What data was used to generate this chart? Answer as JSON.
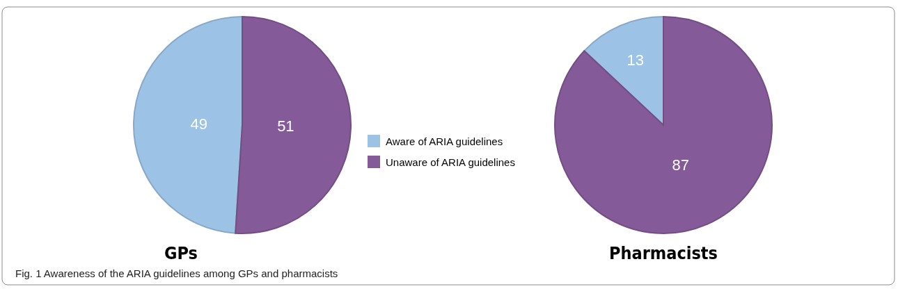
{
  "chart_data": [
    {
      "type": "pie",
      "title": "GPs",
      "categories": [
        "Aware of ARIA guidelines",
        "Unaware of ARIA guidelines"
      ],
      "values": [
        49,
        51
      ],
      "colors": [
        "#9cc2e6",
        "#845a98"
      ],
      "data_labels": true,
      "legend": "right",
      "annotations": [
        "Fig. 1  Awareness of the ARIA guidelines among GPs and pharmacists"
      ]
    },
    {
      "type": "pie",
      "title": "Pharmacists",
      "categories": [
        null,
        null
      ],
      "values": [
        13,
        87
      ],
      "colors": [
        "#9cc2e6",
        "#845a98"
      ],
      "data_labels": true
    }
  ]
}
